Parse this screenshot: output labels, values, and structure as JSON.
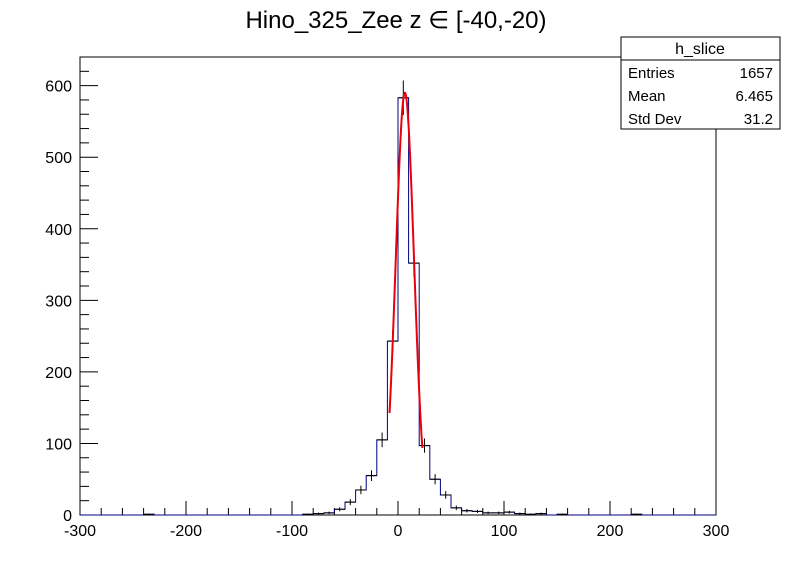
{
  "chart_data": {
    "type": "histogram",
    "title": "Hino_325_Zee z  ∈ [-40,-20)",
    "xlabel": "",
    "ylabel": "",
    "xlim": [
      -300,
      300
    ],
    "ylim": [
      0,
      640
    ],
    "x_ticks": [
      -300,
      -200,
      -100,
      0,
      100,
      200,
      300
    ],
    "y_ticks": [
      0,
      100,
      200,
      300,
      400,
      500,
      600
    ],
    "bin_width": 10,
    "bins": [
      {
        "x": -240,
        "value": 1
      },
      {
        "x": -90,
        "value": 1
      },
      {
        "x": -80,
        "value": 2
      },
      {
        "x": -70,
        "value": 3
      },
      {
        "x": -60,
        "value": 8
      },
      {
        "x": -50,
        "value": 18
      },
      {
        "x": -40,
        "value": 35
      },
      {
        "x": -30,
        "value": 55
      },
      {
        "x": -20,
        "value": 105
      },
      {
        "x": -10,
        "value": 243
      },
      {
        "x": 0,
        "value": 583
      },
      {
        "x": 10,
        "value": 352
      },
      {
        "x": 20,
        "value": 97
      },
      {
        "x": 30,
        "value": 50
      },
      {
        "x": 40,
        "value": 28
      },
      {
        "x": 50,
        "value": 10
      },
      {
        "x": 60,
        "value": 6
      },
      {
        "x": 70,
        "value": 5
      },
      {
        "x": 80,
        "value": 3
      },
      {
        "x": 90,
        "value": 3
      },
      {
        "x": 100,
        "value": 4
      },
      {
        "x": 110,
        "value": 2
      },
      {
        "x": 120,
        "value": 1
      },
      {
        "x": 130,
        "value": 2
      },
      {
        "x": 150,
        "value": 1
      },
      {
        "x": 220,
        "value": 1
      }
    ],
    "fit": {
      "function": "gaussian",
      "amplitude": 590,
      "mean": 6.5,
      "sigma": 8.6,
      "range": [
        -8,
        23
      ],
      "color": "#e8000b"
    },
    "histogram_color": "#00007f",
    "stats_box": {
      "name": "h_slice",
      "entries": [
        {
          "label": "Entries",
          "value": "1657"
        },
        {
          "label": "Mean",
          "value": "6.465"
        },
        {
          "label": "Std Dev",
          "value": "31.2"
        }
      ]
    }
  }
}
